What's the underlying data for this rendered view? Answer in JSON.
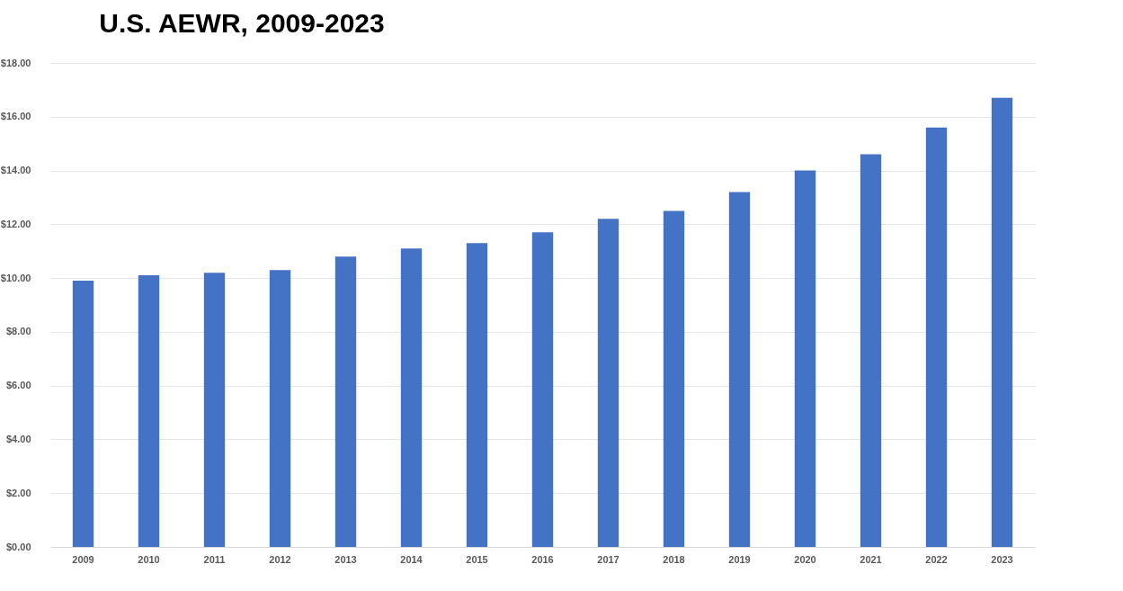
{
  "chart_data": {
    "type": "bar",
    "title": "U.S. AEWR, 2009-2023",
    "categories": [
      "2009",
      "2010",
      "2011",
      "2012",
      "2013",
      "2014",
      "2015",
      "2016",
      "2017",
      "2018",
      "2019",
      "2020",
      "2021",
      "2022",
      "2023"
    ],
    "values": [
      9.9,
      10.1,
      10.2,
      10.3,
      10.8,
      11.1,
      11.3,
      11.7,
      12.2,
      12.5,
      13.2,
      14.0,
      14.6,
      15.6,
      16.7
    ],
    "color": "#4472c4",
    "ylim": [
      0,
      18
    ],
    "yticks": [
      {
        "value": 0,
        "label": "$0.00"
      },
      {
        "value": 2,
        "label": "$2.00"
      },
      {
        "value": 4,
        "label": "$4.00"
      },
      {
        "value": 6,
        "label": "$6.00"
      },
      {
        "value": 8,
        "label": "$8.00"
      },
      {
        "value": 10,
        "label": "$10.00"
      },
      {
        "value": 12,
        "label": "$12.00"
      },
      {
        "value": 14,
        "label": "$14.00"
      },
      {
        "value": 16,
        "label": "$16.00"
      },
      {
        "value": 18,
        "label": "$18.00"
      }
    ],
    "grid": "y"
  }
}
